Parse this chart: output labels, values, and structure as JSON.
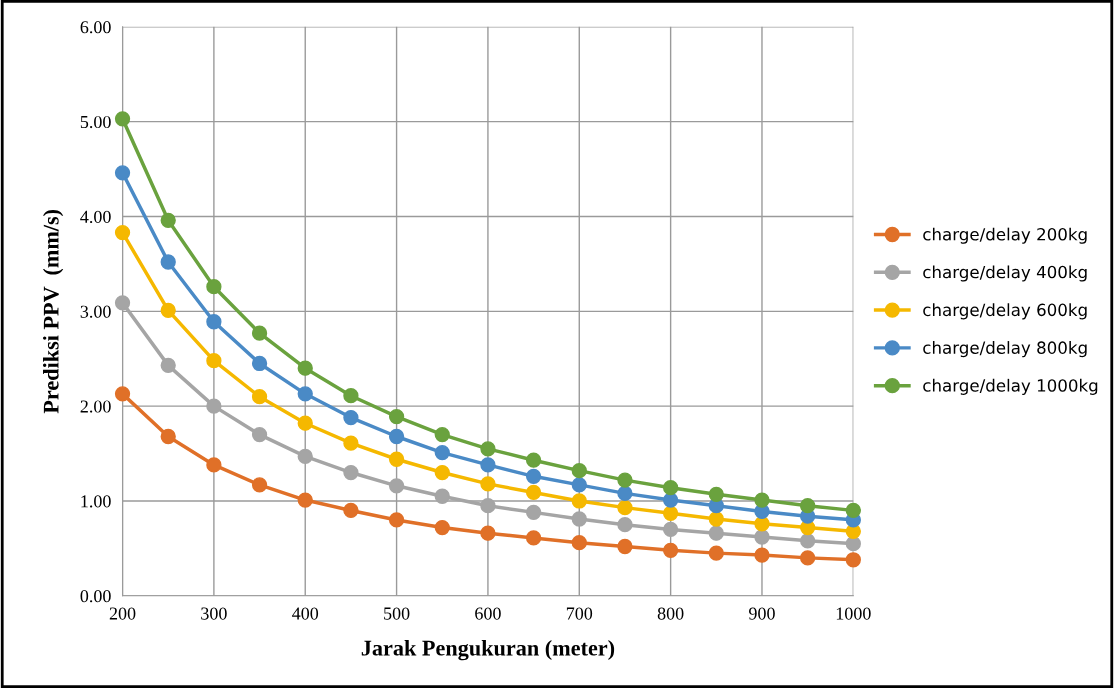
{
  "chart_data": {
    "type": "line",
    "xlabel": "Jarak Pengukuran (meter)",
    "ylabel": "Prediksi PPV  (mm/s)",
    "x": [
      200,
      250,
      300,
      350,
      400,
      450,
      500,
      550,
      600,
      650,
      700,
      750,
      800,
      850,
      900,
      950,
      1000
    ],
    "series": [
      {
        "name": "charge/delay 200kg",
        "color": "#e07028",
        "values": [
          2.13,
          1.68,
          1.38,
          1.17,
          1.01,
          0.9,
          0.8,
          0.72,
          0.66,
          0.61,
          0.56,
          0.52,
          0.48,
          0.45,
          0.43,
          0.4,
          0.38
        ]
      },
      {
        "name": "charge/delay 400kg",
        "color": "#a5a5a5",
        "values": [
          3.09,
          2.43,
          2.0,
          1.7,
          1.47,
          1.3,
          1.16,
          1.05,
          0.95,
          0.88,
          0.81,
          0.75,
          0.7,
          0.66,
          0.62,
          0.58,
          0.55
        ]
      },
      {
        "name": "charge/delay 600kg",
        "color": "#f5b800",
        "values": [
          3.83,
          3.01,
          2.48,
          2.1,
          1.82,
          1.61,
          1.44,
          1.3,
          1.18,
          1.09,
          1.0,
          0.93,
          0.87,
          0.81,
          0.76,
          0.72,
          0.68
        ]
      },
      {
        "name": "charge/delay 800kg",
        "color": "#4a8ac6",
        "values": [
          4.46,
          3.52,
          2.89,
          2.45,
          2.13,
          1.88,
          1.68,
          1.51,
          1.38,
          1.26,
          1.17,
          1.08,
          1.01,
          0.95,
          0.89,
          0.84,
          0.8
        ]
      },
      {
        "name": "charge/delay 1000kg",
        "color": "#6aa23e",
        "values": [
          5.03,
          3.96,
          3.26,
          2.77,
          2.4,
          2.11,
          1.89,
          1.7,
          1.55,
          1.43,
          1.32,
          1.22,
          1.14,
          1.07,
          1.01,
          0.95,
          0.9
        ]
      }
    ],
    "xlim": [
      200,
      1000
    ],
    "xticks": [
      200,
      300,
      400,
      500,
      600,
      700,
      800,
      900,
      1000
    ],
    "ylim": [
      0,
      6
    ],
    "yticks": [
      {
        "value": 0,
        "label": "0.00"
      },
      {
        "value": 1,
        "label": "1.00"
      },
      {
        "value": 2,
        "label": "2.00"
      },
      {
        "value": 3,
        "label": "3.00"
      },
      {
        "value": 4,
        "label": "4.00"
      },
      {
        "value": 5,
        "label": "5.00"
      },
      {
        "value": 6,
        "label": "6.00"
      }
    ],
    "grid": true,
    "legend": "right",
    "marker": "circle",
    "line_style": "solid"
  }
}
